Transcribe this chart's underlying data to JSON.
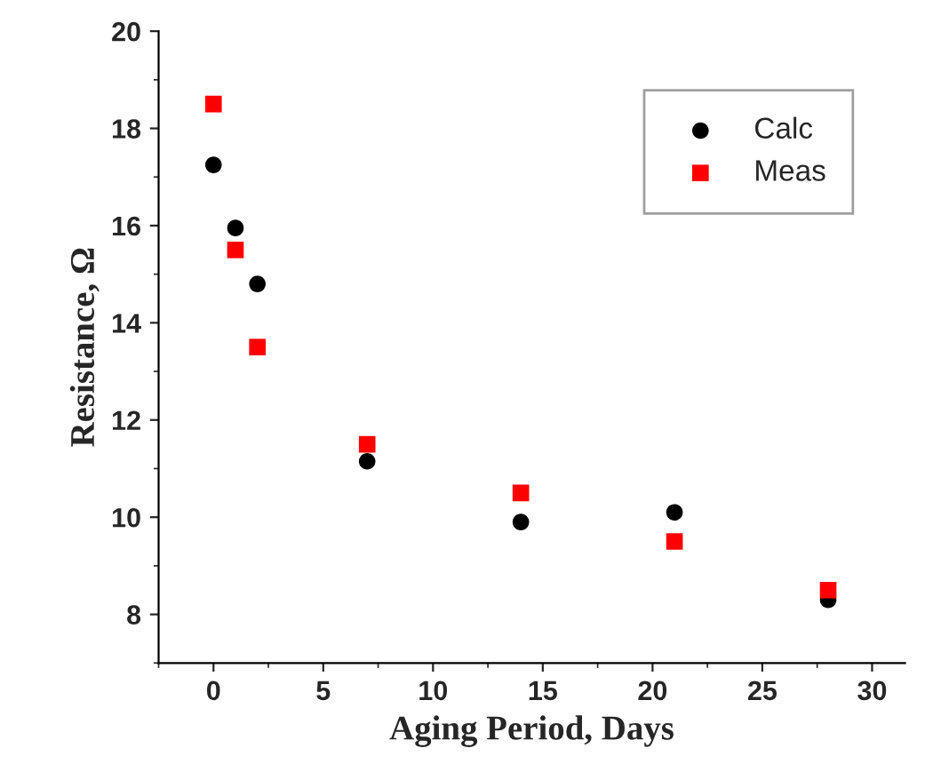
{
  "chart_data": {
    "type": "scatter",
    "xlabel": "Aging Period, Days",
    "ylabel": "Resistance, Ω",
    "xlim": [
      -2.5,
      31.5
    ],
    "ylim": [
      7,
      20
    ],
    "xticks": [
      0,
      5,
      10,
      15,
      20,
      25,
      30
    ],
    "yticks": [
      8,
      10,
      12,
      14,
      16,
      18,
      20
    ],
    "legend": "top right",
    "grid": false,
    "series": [
      {
        "name": "Calc",
        "color": "#000000",
        "marker": "circle",
        "x": [
          0,
          1,
          2,
          7,
          14,
          21,
          28
        ],
        "values": [
          17.25,
          15.95,
          14.8,
          11.15,
          9.9,
          10.1,
          8.3
        ]
      },
      {
        "name": "Meas",
        "color": "#ff0000",
        "marker": "square",
        "x": [
          0,
          1,
          2,
          7,
          14,
          21,
          28
        ],
        "values": [
          18.5,
          15.5,
          13.5,
          11.5,
          10.5,
          9.5,
          8.5
        ]
      }
    ]
  }
}
